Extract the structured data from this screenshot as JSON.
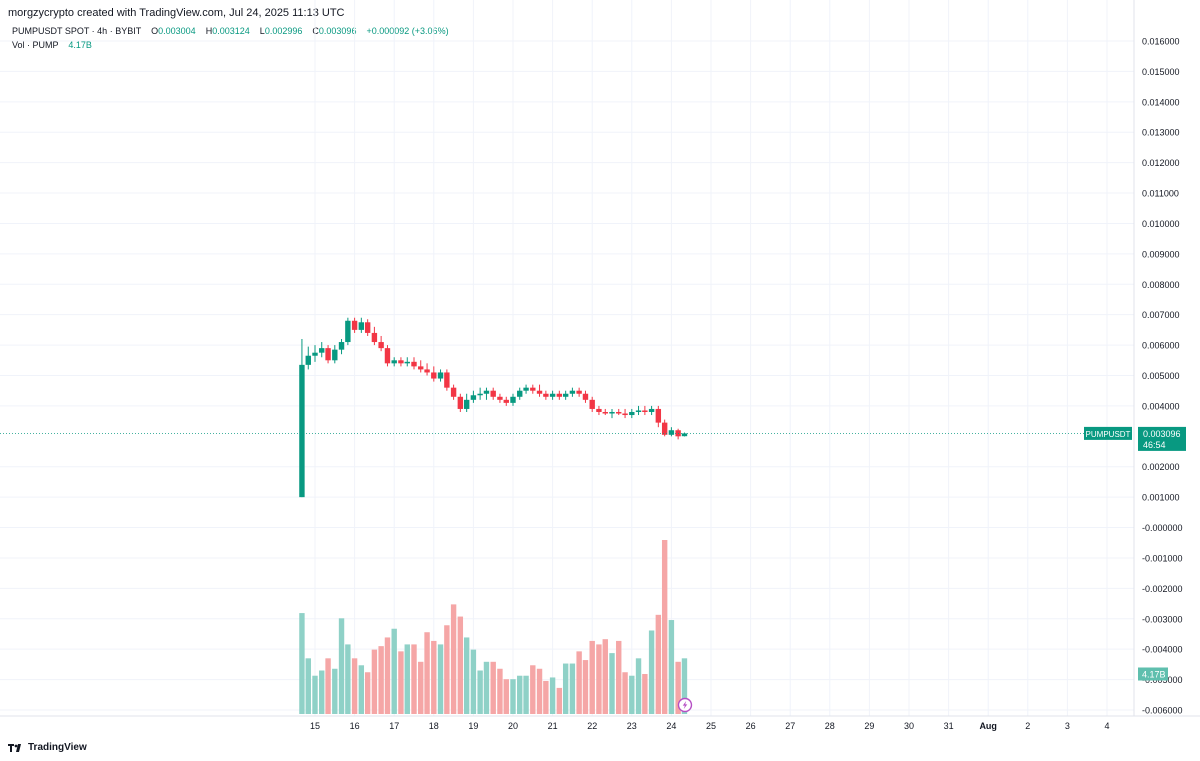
{
  "header": {
    "caption": "morgzycrypto created with TradingView.com, Jul 24, 2025 11:13 UTC"
  },
  "legend": {
    "symbol_line": "PUMPUSDT SPOT · 4h · BYBIT",
    "open_label": "O",
    "open": "0.003004",
    "high_label": "H",
    "high": "0.003124",
    "low_label": "L",
    "low": "0.002996",
    "close_label": "C",
    "close": "0.003096",
    "change": "+0.000092 (+3.06%)",
    "vol_label": "Vol · PUMP",
    "vol_value": "4.17B"
  },
  "footer": {
    "brand": "TradingView"
  },
  "colors": {
    "up": "#089981",
    "down": "#f23645",
    "vol_up": "#8fd1c7",
    "vol_down": "#f5a6a6",
    "grid": "#f0f3fa"
  },
  "chart_data": {
    "type": "candlestick",
    "interval": "4h",
    "y_axis": {
      "ticks": [
        "0.016000",
        "0.015000",
        "0.014000",
        "0.013000",
        "0.012000",
        "0.011000",
        "0.010000",
        "0.009000",
        "0.008000",
        "0.007000",
        "0.006000",
        "0.005000",
        "0.004000",
        "0.002000",
        "0.001000",
        "-0.000000",
        "-0.001000",
        "-0.002000",
        "-0.003000",
        "-0.004000",
        "-0.005000",
        "-0.006000"
      ],
      "tick_values": [
        0.016,
        0.015,
        0.014,
        0.013,
        0.012,
        0.011,
        0.01,
        0.009,
        0.008,
        0.007,
        0.006,
        0.005,
        0.004,
        0.002,
        0.001,
        0.0,
        -0.001,
        -0.002,
        -0.003,
        -0.004,
        -0.005,
        -0.006
      ],
      "range": [
        -0.0064,
        0.0168
      ]
    },
    "x_axis": {
      "labels": [
        "15",
        "16",
        "17",
        "18",
        "19",
        "20",
        "21",
        "22",
        "23",
        "24",
        "25",
        "26",
        "27",
        "28",
        "29",
        "30",
        "31",
        "Aug",
        "2",
        "3",
        "4"
      ],
      "first_day": 15,
      "range_days": [
        14.55,
        35.1
      ]
    },
    "price_label": {
      "symbol": "PUMPUSDT",
      "value": "0.003096",
      "countdown": "46:54"
    },
    "volume_label": "4.17B",
    "candles": [
      {
        "t": 14.67,
        "o": 0.001,
        "h": 0.0062,
        "l": 0.001,
        "c": 0.00535,
        "v": 0.58
      },
      {
        "t": 14.83,
        "o": 0.00535,
        "h": 0.00595,
        "l": 0.0052,
        "c": 0.00565,
        "v": 0.32
      },
      {
        "t": 15.0,
        "o": 0.00565,
        "h": 0.006,
        "l": 0.00545,
        "c": 0.00575,
        "v": 0.22
      },
      {
        "t": 15.17,
        "o": 0.00575,
        "h": 0.0061,
        "l": 0.0056,
        "c": 0.0059,
        "v": 0.25
      },
      {
        "t": 15.33,
        "o": 0.0059,
        "h": 0.006,
        "l": 0.0054,
        "c": 0.0055,
        "v": 0.32
      },
      {
        "t": 15.5,
        "o": 0.0055,
        "h": 0.006,
        "l": 0.0054,
        "c": 0.00585,
        "v": 0.26
      },
      {
        "t": 15.67,
        "o": 0.00585,
        "h": 0.0062,
        "l": 0.0057,
        "c": 0.0061,
        "v": 0.55
      },
      {
        "t": 15.83,
        "o": 0.0061,
        "h": 0.0069,
        "l": 0.006,
        "c": 0.0068,
        "v": 0.4
      },
      {
        "t": 16.0,
        "o": 0.0068,
        "h": 0.0069,
        "l": 0.0064,
        "c": 0.0065,
        "v": 0.32
      },
      {
        "t": 16.17,
        "o": 0.0065,
        "h": 0.0069,
        "l": 0.0064,
        "c": 0.00675,
        "v": 0.28
      },
      {
        "t": 16.33,
        "o": 0.00675,
        "h": 0.00685,
        "l": 0.0063,
        "c": 0.0064,
        "v": 0.24
      },
      {
        "t": 16.5,
        "o": 0.0064,
        "h": 0.0066,
        "l": 0.006,
        "c": 0.0061,
        "v": 0.37
      },
      {
        "t": 16.67,
        "o": 0.0061,
        "h": 0.0063,
        "l": 0.0058,
        "c": 0.0059,
        "v": 0.39
      },
      {
        "t": 16.83,
        "o": 0.0059,
        "h": 0.006,
        "l": 0.0053,
        "c": 0.0054,
        "v": 0.44
      },
      {
        "t": 17.0,
        "o": 0.0054,
        "h": 0.0056,
        "l": 0.0053,
        "c": 0.0055,
        "v": 0.49
      },
      {
        "t": 17.17,
        "o": 0.0055,
        "h": 0.0056,
        "l": 0.0053,
        "c": 0.0054,
        "v": 0.36
      },
      {
        "t": 17.33,
        "o": 0.0054,
        "h": 0.0056,
        "l": 0.0053,
        "c": 0.00545,
        "v": 0.4
      },
      {
        "t": 17.5,
        "o": 0.00545,
        "h": 0.0056,
        "l": 0.0052,
        "c": 0.0053,
        "v": 0.4
      },
      {
        "t": 17.67,
        "o": 0.0053,
        "h": 0.0055,
        "l": 0.0051,
        "c": 0.0052,
        "v": 0.3
      },
      {
        "t": 17.83,
        "o": 0.0052,
        "h": 0.0054,
        "l": 0.005,
        "c": 0.0051,
        "v": 0.47
      },
      {
        "t": 18.0,
        "o": 0.0051,
        "h": 0.0053,
        "l": 0.0048,
        "c": 0.0049,
        "v": 0.42
      },
      {
        "t": 18.17,
        "o": 0.0049,
        "h": 0.0052,
        "l": 0.0048,
        "c": 0.0051,
        "v": 0.4
      },
      {
        "t": 18.33,
        "o": 0.0051,
        "h": 0.0052,
        "l": 0.0045,
        "c": 0.0046,
        "v": 0.51
      },
      {
        "t": 18.5,
        "o": 0.0046,
        "h": 0.0047,
        "l": 0.0042,
        "c": 0.0043,
        "v": 0.63
      },
      {
        "t": 18.67,
        "o": 0.0043,
        "h": 0.0044,
        "l": 0.0038,
        "c": 0.0039,
        "v": 0.56
      },
      {
        "t": 18.83,
        "o": 0.0039,
        "h": 0.0044,
        "l": 0.0038,
        "c": 0.0042,
        "v": 0.44
      },
      {
        "t": 19.0,
        "o": 0.0042,
        "h": 0.0045,
        "l": 0.0041,
        "c": 0.00435,
        "v": 0.37
      },
      {
        "t": 19.17,
        "o": 0.00435,
        "h": 0.0046,
        "l": 0.0042,
        "c": 0.0044,
        "v": 0.25
      },
      {
        "t": 19.33,
        "o": 0.0044,
        "h": 0.0046,
        "l": 0.0042,
        "c": 0.0045,
        "v": 0.3
      },
      {
        "t": 19.5,
        "o": 0.0045,
        "h": 0.0046,
        "l": 0.0042,
        "c": 0.0043,
        "v": 0.3
      },
      {
        "t": 19.67,
        "o": 0.0043,
        "h": 0.0044,
        "l": 0.0041,
        "c": 0.0042,
        "v": 0.26
      },
      {
        "t": 19.83,
        "o": 0.0042,
        "h": 0.0043,
        "l": 0.004,
        "c": 0.0041,
        "v": 0.2
      },
      {
        "t": 20.0,
        "o": 0.0041,
        "h": 0.0044,
        "l": 0.004,
        "c": 0.0043,
        "v": 0.2
      },
      {
        "t": 20.17,
        "o": 0.0043,
        "h": 0.0046,
        "l": 0.0042,
        "c": 0.0045,
        "v": 0.22
      },
      {
        "t": 20.33,
        "o": 0.0045,
        "h": 0.0047,
        "l": 0.0044,
        "c": 0.0046,
        "v": 0.22
      },
      {
        "t": 20.5,
        "o": 0.0046,
        "h": 0.0047,
        "l": 0.0044,
        "c": 0.0045,
        "v": 0.28
      },
      {
        "t": 20.67,
        "o": 0.0045,
        "h": 0.0047,
        "l": 0.0043,
        "c": 0.0044,
        "v": 0.26
      },
      {
        "t": 20.83,
        "o": 0.0044,
        "h": 0.0045,
        "l": 0.0042,
        "c": 0.0043,
        "v": 0.19
      },
      {
        "t": 21.0,
        "o": 0.0043,
        "h": 0.0045,
        "l": 0.0042,
        "c": 0.0044,
        "v": 0.21
      },
      {
        "t": 21.17,
        "o": 0.0044,
        "h": 0.0045,
        "l": 0.0042,
        "c": 0.0043,
        "v": 0.15
      },
      {
        "t": 21.33,
        "o": 0.0043,
        "h": 0.0045,
        "l": 0.0042,
        "c": 0.0044,
        "v": 0.29
      },
      {
        "t": 21.5,
        "o": 0.0044,
        "h": 0.0046,
        "l": 0.0043,
        "c": 0.0045,
        "v": 0.29
      },
      {
        "t": 21.67,
        "o": 0.0045,
        "h": 0.0046,
        "l": 0.0043,
        "c": 0.0044,
        "v": 0.36
      },
      {
        "t": 21.83,
        "o": 0.0044,
        "h": 0.0045,
        "l": 0.0041,
        "c": 0.0042,
        "v": 0.31
      },
      {
        "t": 22.0,
        "o": 0.0042,
        "h": 0.0043,
        "l": 0.0038,
        "c": 0.0039,
        "v": 0.42
      },
      {
        "t": 22.17,
        "o": 0.0039,
        "h": 0.004,
        "l": 0.0037,
        "c": 0.0038,
        "v": 0.4
      },
      {
        "t": 22.33,
        "o": 0.0038,
        "h": 0.0039,
        "l": 0.0037,
        "c": 0.00375,
        "v": 0.43
      },
      {
        "t": 22.5,
        "o": 0.00375,
        "h": 0.0039,
        "l": 0.0036,
        "c": 0.0038,
        "v": 0.35
      },
      {
        "t": 22.67,
        "o": 0.0038,
        "h": 0.0039,
        "l": 0.0037,
        "c": 0.00375,
        "v": 0.42
      },
      {
        "t": 22.83,
        "o": 0.00375,
        "h": 0.0039,
        "l": 0.0036,
        "c": 0.0037,
        "v": 0.24
      },
      {
        "t": 23.0,
        "o": 0.0037,
        "h": 0.0039,
        "l": 0.0036,
        "c": 0.0038,
        "v": 0.22
      },
      {
        "t": 23.17,
        "o": 0.0038,
        "h": 0.004,
        "l": 0.0037,
        "c": 0.00385,
        "v": 0.32
      },
      {
        "t": 23.33,
        "o": 0.00385,
        "h": 0.004,
        "l": 0.0037,
        "c": 0.0038,
        "v": 0.23
      },
      {
        "t": 23.5,
        "o": 0.0038,
        "h": 0.004,
        "l": 0.0037,
        "c": 0.0039,
        "v": 0.48
      },
      {
        "t": 23.67,
        "o": 0.0039,
        "h": 0.004,
        "l": 0.0033,
        "c": 0.00345,
        "v": 0.57
      },
      {
        "t": 23.83,
        "o": 0.00345,
        "h": 0.00355,
        "l": 0.003,
        "c": 0.00305,
        "v": 1.0
      },
      {
        "t": 24.0,
        "o": 0.00305,
        "h": 0.0033,
        "l": 0.003,
        "c": 0.0032,
        "v": 0.54
      },
      {
        "t": 24.17,
        "o": 0.0032,
        "h": 0.00325,
        "l": 0.0029,
        "c": 0.003,
        "v": 0.3
      },
      {
        "t": 24.33,
        "o": 0.003004,
        "h": 0.003124,
        "l": 0.002996,
        "c": 0.003096,
        "v": 0.32
      }
    ]
  }
}
